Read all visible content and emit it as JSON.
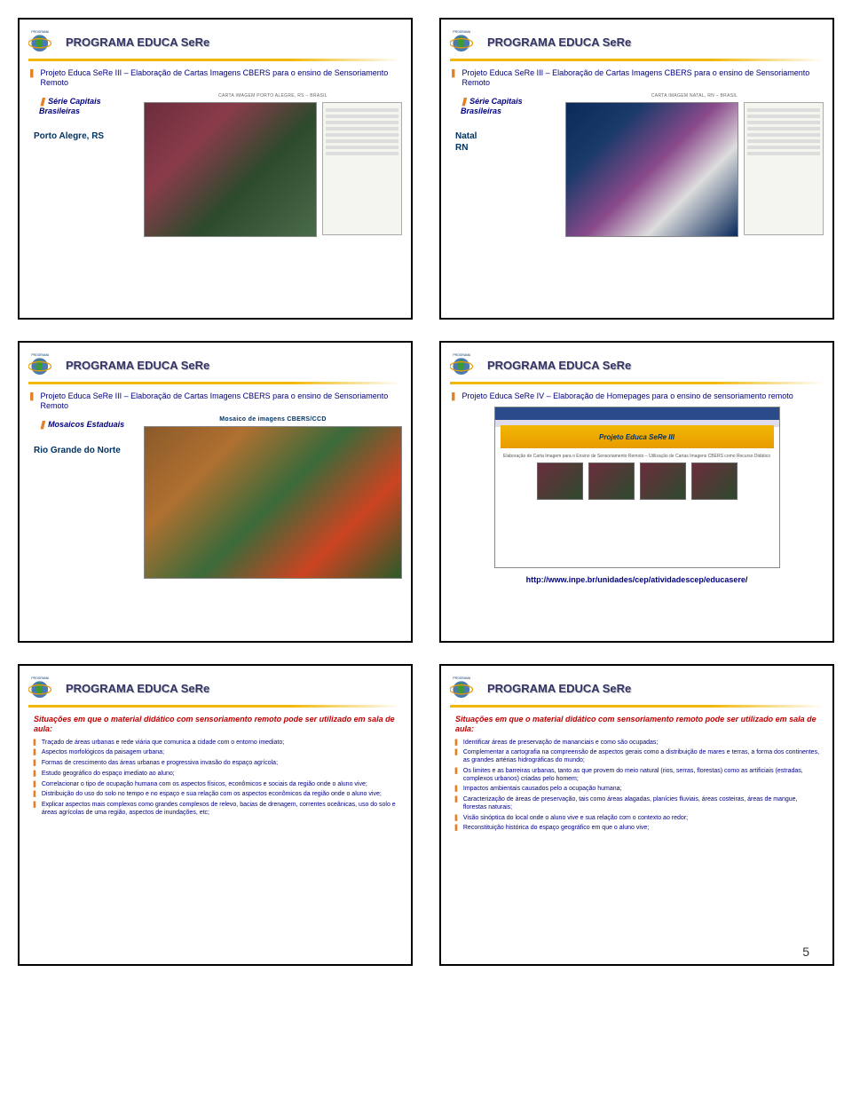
{
  "program_title": "PROGRAMA EDUCA SeRe",
  "page_number": "5",
  "logo": {
    "globe_color": "#4a7ab0",
    "brazil_color": "#3a9a3a",
    "ring_color": "#e89b00"
  },
  "colors": {
    "title_color": "#333366",
    "underline_start": "#f2b705",
    "bullet_mark": "#e67e22",
    "text_blue": "#000080",
    "subtitle_red": "#c00000"
  },
  "slide1": {
    "project_line": "Projeto Educa SeRe III – Elaboração de Cartas Imagens CBERS para o ensino de Sensoriamento Remoto",
    "series": "Série Capitais Brasileiras",
    "map_caption": "CARTA IMAGEM\nPORTO ALEGRE, RS – BRASIL",
    "city": "Porto Alegre, RS"
  },
  "slide2": {
    "project_line": "Projeto Educa SeRe III – Elaboração de Cartas Imagens CBERS para o ensino de Sensoriamento Remoto",
    "series": "Série Capitais Brasileiras",
    "map_caption": "CARTA IMAGEM\nNATAL, RN – BRASIL",
    "city_line1": "Natal",
    "city_line2": "RN"
  },
  "slide3": {
    "project_line": "Projeto Educa SeRe III – Elaboração de Cartas Imagens CBERS para o ensino de Sensoriamento Remoto",
    "series": "Mosaicos Estaduais",
    "mosaic_caption": "Mosaico de imagens CBERS/CCD",
    "state": "Rio Grande do Norte"
  },
  "slide4": {
    "project_line": "Projeto Educa SeRe IV – Elaboração de Homepages para o ensino de sensoriamento remoto",
    "banner": "Projeto Educa SeRe III",
    "banner_sub": "Elaboração de Carta Imagem para o Ensino de Sensoriamento Remoto – Utilização de Cartas Imagens CBERS como Recurso Didático",
    "url_prefix": "http://www.inpe.br/unidades/cep/atividadescep/educasere",
    "url_suffix": "/"
  },
  "slide5": {
    "subtitle": "Situações em que o material didático com sensoriamento remoto pode ser utilizado em sala de aula:",
    "items": [
      "Traçado de áreas urbanas e rede viária que comunica a cidade com o entorno imediato;",
      "Aspectos morfológicos da paisagem urbana;",
      "Formas de crescimento das áreas urbanas e progressiva invasão do espaço agrícola;",
      "Estudo geográfico do espaço imediato ao aluno;",
      "Correlacionar o tipo de ocupação humana com os aspectos físicos, econômicos e sociais da região onde o aluno vive;",
      "Distribuição do uso do solo no tempo e no espaço e sua relação com os aspectos econômicos da região onde o aluno vive;",
      "Explicar aspectos mais complexos como grandes complexos de relevo, bacias de drenagem, correntes oceânicas, uso do solo e áreas agrícolas de uma região, aspectos de inundações, etc;"
    ]
  },
  "slide6": {
    "subtitle": "Situações em que o material didático com sensoriamento remoto pode ser utilizado em sala de aula:",
    "items": [
      "Identificar áreas de preservação de mananciais e como são ocupadas;",
      "Complementar a cartografia na compreensão de aspectos gerais como a distribuição de mares e terras, a forma dos continentes, as grandes artérias hidrográficas do mundo;",
      "Os limites e as barreiras urbanas, tanto as que provem do meio natural (rios, serras, florestas) como as artificiais (estradas, complexos urbanos) criadas pelo homem;",
      "Impactos ambientais causados pelo a ocupação humana;",
      "Caracterização de áreas de preservação, tais como áreas alagadas, planícies fluviais, áreas costeiras, áreas de mangue, florestas naturais;",
      "Visão sinóptica do local onde o aluno vive e sua relação com o contexto ao redor;",
      "Reconstituição histórica do espaço geográfico em que o aluno vive;"
    ]
  }
}
